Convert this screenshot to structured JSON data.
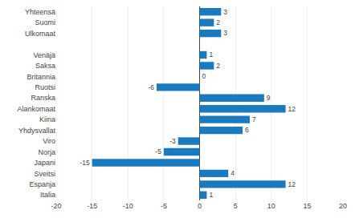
{
  "chart_data": {
    "type": "bar",
    "orientation": "horizontal",
    "categories": [
      "Yhteensä",
      "Suomi",
      "Ulkomaat",
      null,
      "Venäjä",
      "Saksa",
      "Britannia",
      "Ruotsi",
      "Ranska",
      "Alankomaat",
      "Kiina",
      "Yhdysvallat",
      "Viro",
      "Norja",
      "Japani",
      "Sveitsi",
      "Espanja",
      "Italia"
    ],
    "values": [
      3,
      2,
      3,
      null,
      1,
      2,
      0,
      -6,
      9,
      12,
      7,
      6,
      -3,
      -5,
      -15,
      4,
      12,
      1
    ],
    "color": "#1a7abf",
    "xlim": [
      -20,
      20
    ],
    "xticks": [
      -20,
      -15,
      -10,
      -5,
      0,
      5,
      10,
      15,
      20
    ],
    "grid": true,
    "data_labels": true
  }
}
